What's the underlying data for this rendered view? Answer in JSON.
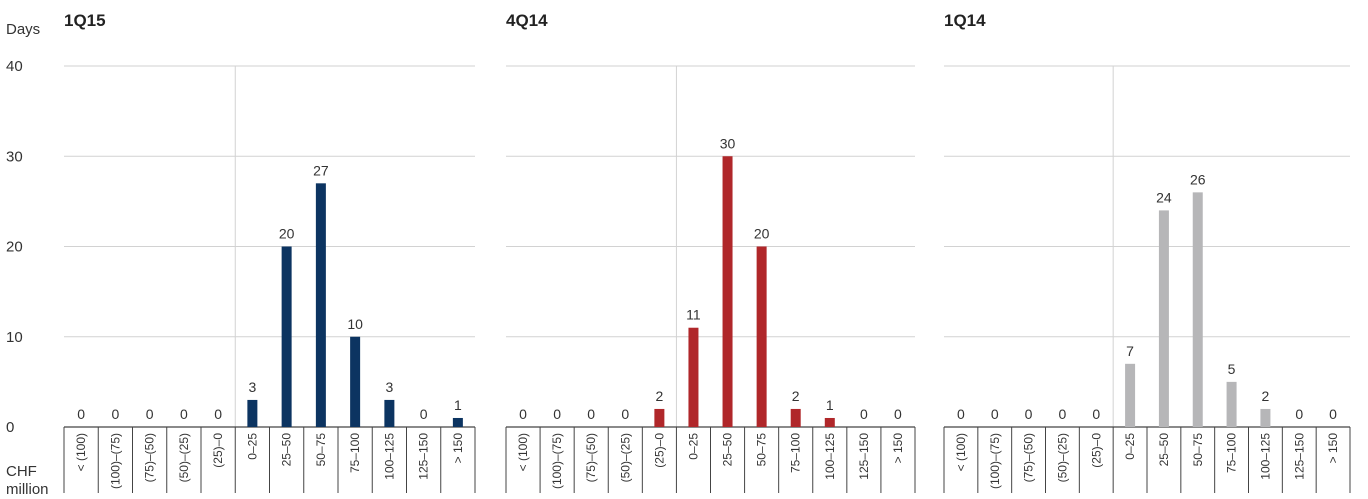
{
  "ylabel": "Days",
  "xlabel_line1": "CHF",
  "xlabel_line2": "million",
  "colors": {
    "1Q15": "#0c3461",
    "4Q14": "#b0272a",
    "1Q14": "#b6b6b8",
    "grid": "#d2d2d2",
    "axis": "#444444"
  },
  "chart_data": [
    {
      "type": "bar",
      "title": "1Q15",
      "categories": [
        "< (100)",
        "(100)–(75)",
        "(75)–(50)",
        "(50)–(25)",
        "(25)–0",
        "0–25",
        "25–50",
        "50–75",
        "75–100",
        "100–125",
        "125–150",
        "> 150"
      ],
      "values": [
        0,
        0,
        0,
        0,
        0,
        3,
        20,
        27,
        10,
        3,
        0,
        1
      ],
      "ylim": [
        0,
        40
      ],
      "yticks": [
        0,
        10,
        20,
        30,
        40
      ],
      "xlabel": "CHF million",
      "ylabel": "Days",
      "color": "#0c3461"
    },
    {
      "type": "bar",
      "title": "4Q14",
      "categories": [
        "< (100)",
        "(100)–(75)",
        "(75)–(50)",
        "(50)–(25)",
        "(25)–0",
        "0–25",
        "25–50",
        "50–75",
        "75–100",
        "100–125",
        "125–150",
        "> 150"
      ],
      "values": [
        0,
        0,
        0,
        0,
        2,
        11,
        30,
        20,
        2,
        1,
        0,
        0
      ],
      "ylim": [
        0,
        40
      ],
      "color": "#b0272a"
    },
    {
      "type": "bar",
      "title": "1Q14",
      "categories": [
        "< (100)",
        "(100)–(75)",
        "(75)–(50)",
        "(50)–(25)",
        "(25)–0",
        "0–25",
        "25–50",
        "50–75",
        "75–100",
        "100–125",
        "125–150",
        "> 150"
      ],
      "values": [
        0,
        0,
        0,
        0,
        0,
        7,
        24,
        26,
        5,
        2,
        0,
        0
      ],
      "ylim": [
        0,
        40
      ],
      "color": "#b6b6b8"
    }
  ]
}
